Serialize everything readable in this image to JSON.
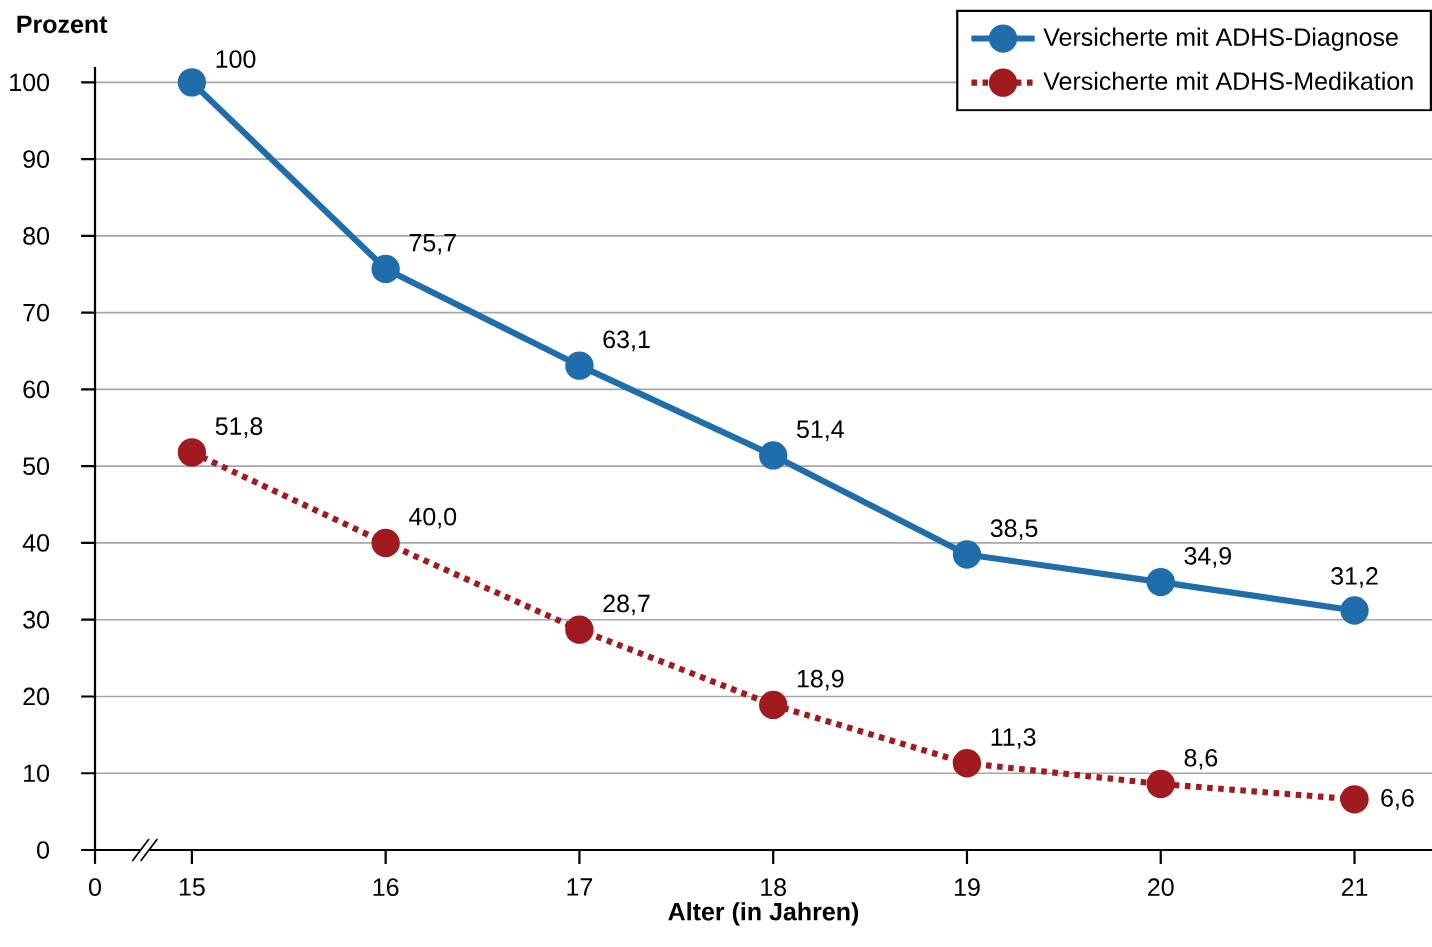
{
  "chart_data": {
    "type": "line",
    "ylabel": "Prozent",
    "xlabel": "Alter (in Jahren)",
    "categories": [
      "15",
      "16",
      "17",
      "18",
      "19",
      "20",
      "21"
    ],
    "series": [
      {
        "name": "Versicherte mit ADHS-Diagnose",
        "color": "#1f6dab",
        "line_style": "solid",
        "values": [
          100,
          75.7,
          63.1,
          51.4,
          38.5,
          34.9,
          31.2
        ],
        "value_labels": [
          "100",
          "75,7",
          "63,1",
          "51,4",
          "38,5",
          "34,9",
          "31,2"
        ]
      },
      {
        "name": "Versicherte mit ADHS-Medikation",
        "color": "#a01a1f",
        "line_style": "dotted",
        "values": [
          51.8,
          40.0,
          28.7,
          18.9,
          11.3,
          8.6,
          6.6
        ],
        "value_labels": [
          "51,8",
          "40,0",
          "28,7",
          "18,9",
          "11,3",
          "8,6",
          "6,6"
        ]
      }
    ],
    "ylim": [
      0,
      102
    ],
    "yticks": [
      0,
      10,
      20,
      30,
      40,
      50,
      60,
      70,
      80,
      90,
      100
    ],
    "grid": "y",
    "legend": "top right",
    "marker": "circle",
    "annotations": [
      "0"
    ]
  }
}
